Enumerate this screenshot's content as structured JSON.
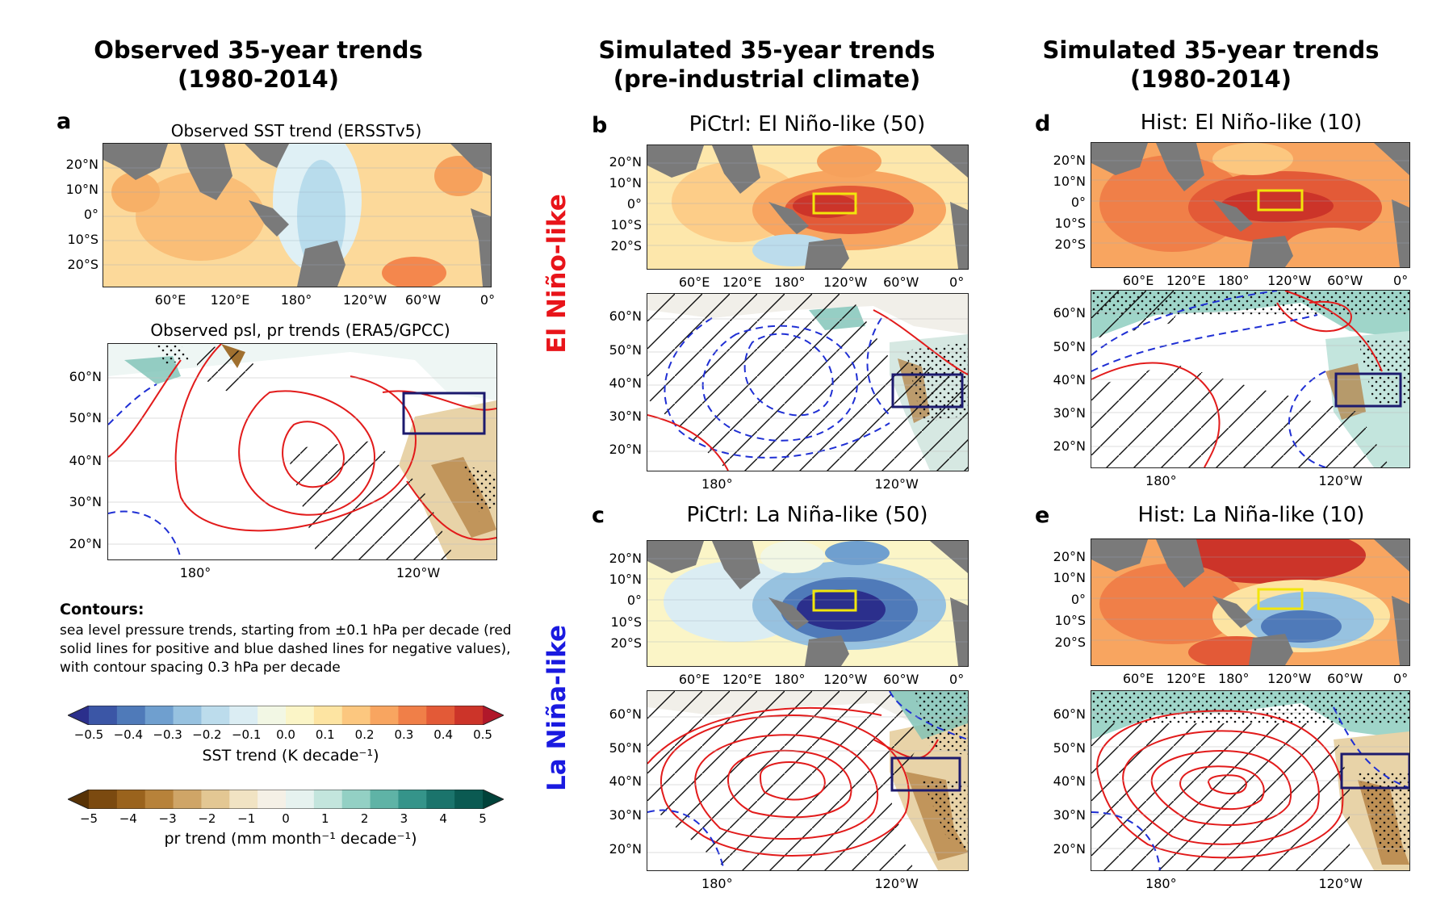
{
  "columns": {
    "a": {
      "title_line1": "Observed 35-year trends",
      "title_line2": "(1980-2014)"
    },
    "b": {
      "title_line1": "Simulated 35-year trends",
      "title_line2": "(pre-industrial climate)"
    },
    "c": {
      "title_line1": "Simulated 35-year trends",
      "title_line2": "(1980-2014)"
    }
  },
  "row_labels": {
    "top": "El Niño-like",
    "bottom": "La Niña-like"
  },
  "row_label_colors": {
    "top": "#e8141a",
    "bottom": "#1a1ae0"
  },
  "panels": {
    "a": {
      "letter": "a",
      "sst_title": "Observed SST trend (ERSSTv5)",
      "map_title": "Observed psl, pr trends (ERA5/GPCC)"
    },
    "b": {
      "letter": "b",
      "title": "PiCtrl: El Niño-like (50)"
    },
    "c": {
      "letter": "c",
      "title": "PiCtrl: La Niña-like (50)"
    },
    "d": {
      "letter": "d",
      "title": "Hist: El Niño-like (10)"
    },
    "e": {
      "letter": "e",
      "title": "Hist: La Niña-like (10)"
    }
  },
  "sst_axis": {
    "lat_ticks": [
      "20°N",
      "10°N",
      "0°",
      "10°S",
      "20°S"
    ],
    "lon_ticks": [
      "60°E",
      "120°E",
      "180°",
      "120°W",
      "60°W",
      "0°"
    ]
  },
  "pacific_axis": {
    "lat_ticks": [
      "60°N",
      "50°N",
      "40°N",
      "30°N",
      "20°N"
    ],
    "lon_ticks": [
      "180°",
      "120°W"
    ]
  },
  "contours": {
    "heading": "Contours:",
    "text": "sea level pressure trends, starting from ±0.1 hPa per decade (red solid lines for positive and blue dashed lines for negative values), with contour spacing 0.3 hPa per decade"
  },
  "colorbars": {
    "sst": {
      "ticks": [
        "−0.5",
        "−0.4",
        "−0.3",
        "−0.2",
        "−0.1",
        "0.0",
        "0.1",
        "0.2",
        "0.3",
        "0.4",
        "0.5"
      ],
      "label": "SST trend (K decade⁻¹)",
      "colors": [
        "#2b2f8c",
        "#3b56a6",
        "#4f7ab9",
        "#6f9fcf",
        "#97c2e0",
        "#bcdcec",
        "#dbedf3",
        "#f2f7e4",
        "#fbf5c7",
        "#fde4a2",
        "#fcc77f",
        "#f8a560",
        "#f07f48",
        "#e35a37",
        "#cc3429",
        "#b0182a"
      ]
    },
    "pr": {
      "ticks": [
        "−5",
        "−4",
        "−3",
        "−2",
        "−1",
        "0",
        "1",
        "2",
        "3",
        "4",
        "5"
      ],
      "label": "pr trend (mm month⁻¹ decade⁻¹)",
      "colors": [
        "#573206",
        "#7b4a10",
        "#9a631d",
        "#b7823a",
        "#cfa567",
        "#e3c793",
        "#f1e3c3",
        "#f5f0e6",
        "#e6f2ef",
        "#c3e5dd",
        "#93d0c4",
        "#5fb3a6",
        "#35948a",
        "#1b746c",
        "#0b5a52",
        "#01423a"
      ]
    }
  },
  "colors": {
    "land": "#7a7a7a",
    "positive_contour": "#e21b1b",
    "negative_contour": "#1f2fd4",
    "box_yellow": "#f2e60c",
    "box_navy": "#1c1a6e"
  }
}
